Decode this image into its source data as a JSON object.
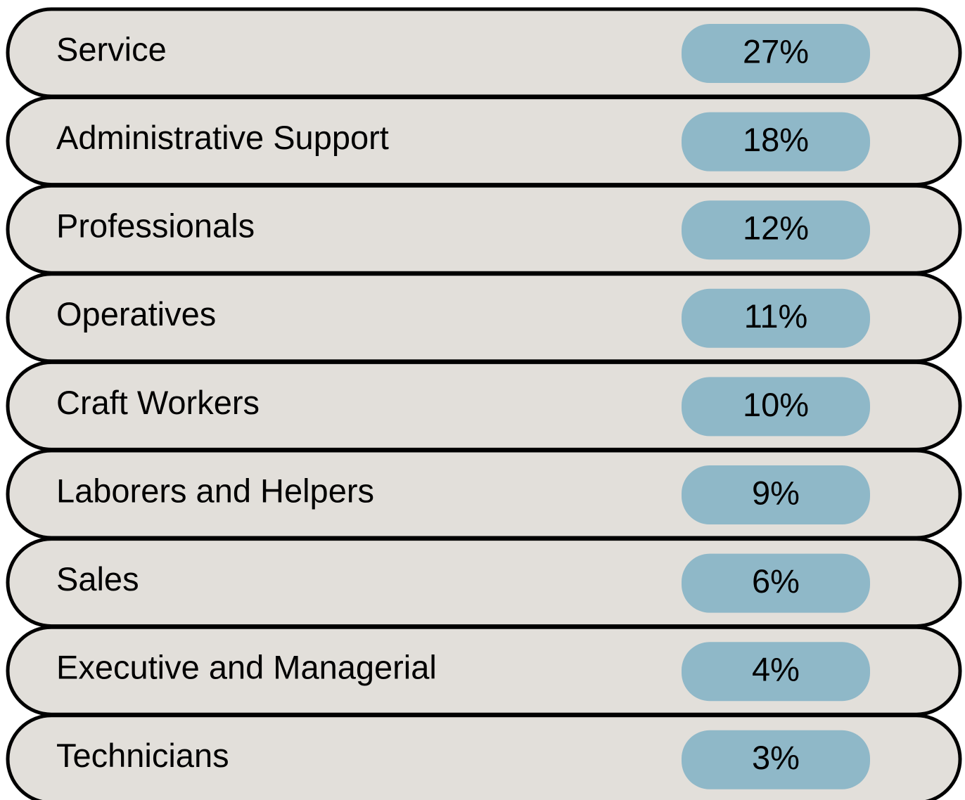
{
  "rows": [
    {
      "label": "Service",
      "value": "27%"
    },
    {
      "label": "Administrative Support",
      "value": "18%"
    },
    {
      "label": "Professionals",
      "value": "12%"
    },
    {
      "label": "Operatives",
      "value": "11%"
    },
    {
      "label": "Craft Workers",
      "value": "10%"
    },
    {
      "label": "Laborers and Helpers",
      "value": "9%"
    },
    {
      "label": "Sales",
      "value": "6%"
    },
    {
      "label": "Executive and Managerial",
      "value": "4%"
    },
    {
      "label": "Technicians",
      "value": "3%"
    }
  ]
}
